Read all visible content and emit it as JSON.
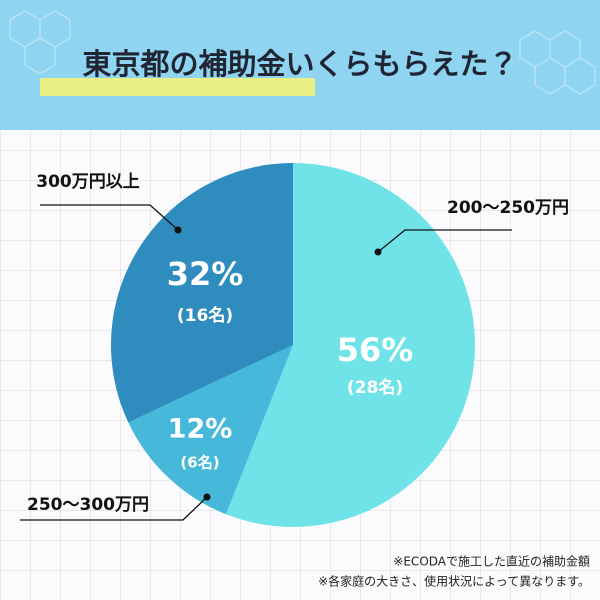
{
  "chart_data": {
    "type": "pie",
    "title": "東京都の補助金いくらもらえた？",
    "categories": [
      "200〜250万円",
      "250〜300万円",
      "300万円以上"
    ],
    "values": [
      56,
      12,
      32
    ],
    "value_labels": [
      "56%",
      "12%",
      "32%"
    ],
    "count_labels": [
      "(28名)",
      "(6名)",
      "(16名)"
    ],
    "colors": [
      "#6fe3e8",
      "#46b9da",
      "#2f8cbe"
    ],
    "notes": [
      "※ECODAで施工した直近の補助金額",
      "※各家庭の大きさ、使用状況によって異なります。"
    ]
  }
}
